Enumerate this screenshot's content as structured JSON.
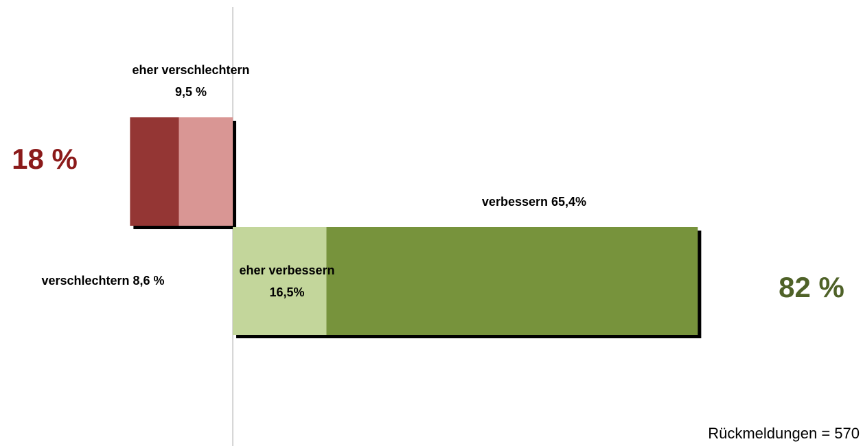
{
  "chart_data": {
    "type": "diverging-bar",
    "xlim": [
      -41,
      111
    ],
    "series": [
      {
        "name": "verschlechtern",
        "color": "#943634",
        "direction": "negative",
        "values": [
          8.6
        ],
        "value_labels": [
          "8,6 %"
        ]
      },
      {
        "name": "eher verschlechtern",
        "color": "#d99694",
        "direction": "negative",
        "values": [
          9.5
        ],
        "value_labels": [
          "9,5 %"
        ]
      },
      {
        "name": "eher verbessern",
        "color": "#c3d69b",
        "direction": "positive",
        "values": [
          16.5
        ],
        "value_labels": [
          "16,5%"
        ]
      },
      {
        "name": "verbessern",
        "color": "#77933c",
        "direction": "positive",
        "values": [
          65.4
        ],
        "value_labels": [
          "65,4%"
        ]
      }
    ],
    "totals": [
      {
        "value": 18,
        "label": "18 %",
        "color": "#8b1a1a",
        "direction": "negative"
      },
      {
        "value": 82,
        "label": "82 %",
        "color": "#4f6228",
        "direction": "positive"
      }
    ],
    "annotation": "Rückmeldungen  = 570"
  }
}
